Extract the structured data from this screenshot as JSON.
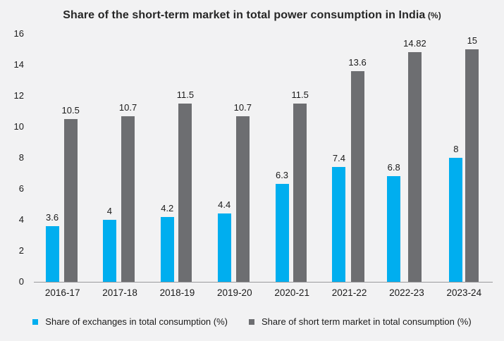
{
  "title": {
    "main": "Share of the short-term market in total power consumption in India",
    "suffix": " (%)"
  },
  "colors": {
    "background": "#f2f2f3",
    "exchanges_bar": "#00aeef",
    "short_term_bar": "#6d6e71",
    "axis_line": "#9a9a9c",
    "text": "#1a1a1a"
  },
  "chart_data": {
    "type": "bar",
    "title": "Share of the short-term market in total power consumption in India (%)",
    "categories": [
      "2016-17",
      "2017-18",
      "2018-19",
      "2019-20",
      "2020-21",
      "2021-22",
      "2022-23",
      "2023-24"
    ],
    "series": [
      {
        "name": "Share of exchanges in total consumption (%)",
        "color": "#00aeef",
        "values": [
          3.6,
          4,
          4.2,
          4.4,
          6.3,
          7.4,
          6.8,
          8
        ],
        "labels": [
          "3.6",
          "4",
          "4.2",
          "4.4",
          "6.3",
          "7.4",
          "6.8",
          "8"
        ]
      },
      {
        "name": "Share of short term market in total consumption (%)",
        "color": "#6d6e71",
        "values": [
          10.5,
          10.7,
          11.5,
          10.7,
          11.5,
          13.6,
          14.82,
          15
        ],
        "labels": [
          "10.5",
          "10.7",
          "11.5",
          "10.7",
          "11.5",
          "13.6",
          "14.82",
          "15"
        ]
      }
    ],
    "xlabel": "",
    "ylabel": "",
    "ylim": [
      0,
      16
    ],
    "yticks": [
      0,
      2,
      4,
      6,
      8,
      10,
      12,
      14,
      16
    ],
    "grid": false,
    "legend_position": "bottom"
  },
  "legend": {
    "items": [
      {
        "label": "Share of exchanges in total consumption (%)",
        "color": "#00aeef"
      },
      {
        "label": "Share of short term market in total consumption (%)",
        "color": "#6d6e71"
      }
    ]
  }
}
